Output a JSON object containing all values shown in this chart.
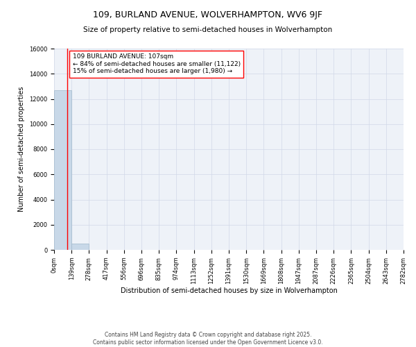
{
  "title_line1": "109, BURLAND AVENUE, WOLVERHAMPTON, WV6 9JF",
  "title_line2": "Size of property relative to semi-detached houses in Wolverhampton",
  "xlabel": "Distribution of semi-detached houses by size in Wolverhampton",
  "ylabel": "Number of semi-detached properties",
  "bin_edges": [
    0,
    139,
    278,
    417,
    556,
    696,
    835,
    974,
    1113,
    1252,
    1391,
    1530,
    1669,
    1808,
    1947,
    2087,
    2226,
    2365,
    2504,
    2643,
    2782
  ],
  "bin_labels": [
    "0sqm",
    "139sqm",
    "278sqm",
    "417sqm",
    "556sqm",
    "696sqm",
    "835sqm",
    "974sqm",
    "1113sqm",
    "1252sqm",
    "1391sqm",
    "1530sqm",
    "1669sqm",
    "1808sqm",
    "1947sqm",
    "2087sqm",
    "2226sqm",
    "2365sqm",
    "2504sqm",
    "2643sqm",
    "2782sqm"
  ],
  "bar_heights": [
    12700,
    500,
    0,
    0,
    0,
    0,
    0,
    0,
    0,
    0,
    0,
    0,
    0,
    0,
    0,
    0,
    0,
    0,
    0,
    0
  ],
  "bar_color": "#c8d8e8",
  "bar_edge_color": "#a0b8cc",
  "red_line_x": 107,
  "ylim": [
    0,
    16000
  ],
  "yticks": [
    0,
    2000,
    4000,
    6000,
    8000,
    10000,
    12000,
    14000,
    16000
  ],
  "annotation_text": "109 BURLAND AVENUE: 107sqm\n← 84% of semi-detached houses are smaller (11,122)\n15% of semi-detached houses are larger (1,980) →",
  "grid_color": "#d0d8e8",
  "bg_color": "#eef2f8",
  "footer_line1": "Contains HM Land Registry data © Crown copyright and database right 2025.",
  "footer_line2": "Contains public sector information licensed under the Open Government Licence v3.0.",
  "title_fontsize": 9,
  "subtitle_fontsize": 7.5,
  "axis_label_fontsize": 7,
  "tick_fontsize": 6,
  "annotation_fontsize": 6.5,
  "footer_fontsize": 5.5
}
